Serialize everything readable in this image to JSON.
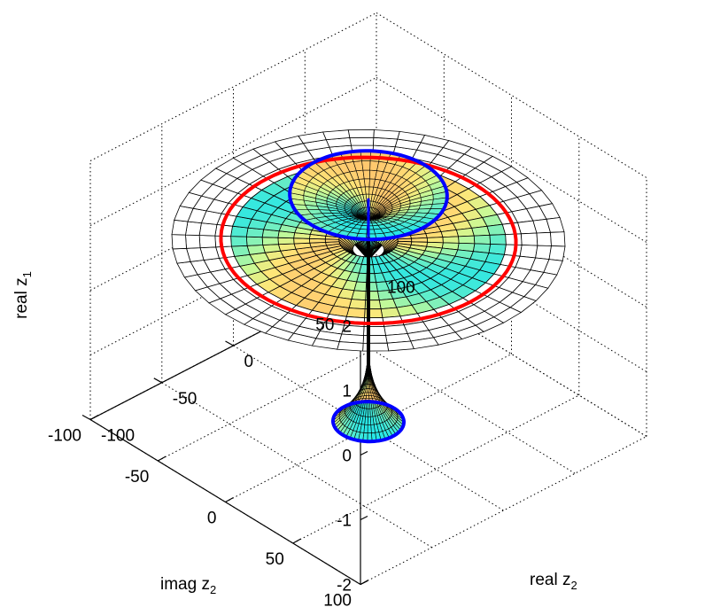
{
  "chart_data": {
    "type": "surface3d",
    "title": "",
    "zlabel": {
      "main": "real z",
      "sub": "1"
    },
    "xlabel": {
      "main": "real z",
      "sub": "2"
    },
    "ylabel": {
      "main": "imag z",
      "sub": "2"
    },
    "xlim": [
      -100,
      100
    ],
    "ylim": [
      -100,
      100
    ],
    "zlim": [
      -2,
      2
    ],
    "z_ticks": [
      "-2",
      "-1",
      "0",
      "1",
      "2"
    ],
    "x_ticks": [
      "-100",
      "-50",
      "0",
      "50",
      "100"
    ],
    "y_ticks": [
      "-100",
      "-50",
      "0",
      "50",
      "100"
    ],
    "grid": true,
    "surfaces": [
      {
        "name": "",
        "kind": "annulus",
        "z": 0.9,
        "inner_radius": 0,
        "outer_radius": 100,
        "colored_radius": 75
      },
      {
        "name": "",
        "kind": "funnel",
        "z_top": 1.6,
        "z_bottom": 0.9,
        "rim_radius": 40
      },
      {
        "name": "",
        "kind": "funnel",
        "z_top": -1.9,
        "z_bottom": -0.4,
        "rim_radius": 18
      }
    ],
    "curves": [
      {
        "name": "",
        "color": "#ff0000",
        "z": 0.9,
        "radius": 75
      },
      {
        "name": "",
        "color": "#0000ff",
        "z": 1.6,
        "radius": 40
      },
      {
        "name": "",
        "color": "#0000ff",
        "z": -1.9,
        "radius": 18
      }
    ],
    "colors": {
      "red_curve": "#ff0000",
      "blue_curve": "#0000ff",
      "edge": "#000000"
    }
  }
}
